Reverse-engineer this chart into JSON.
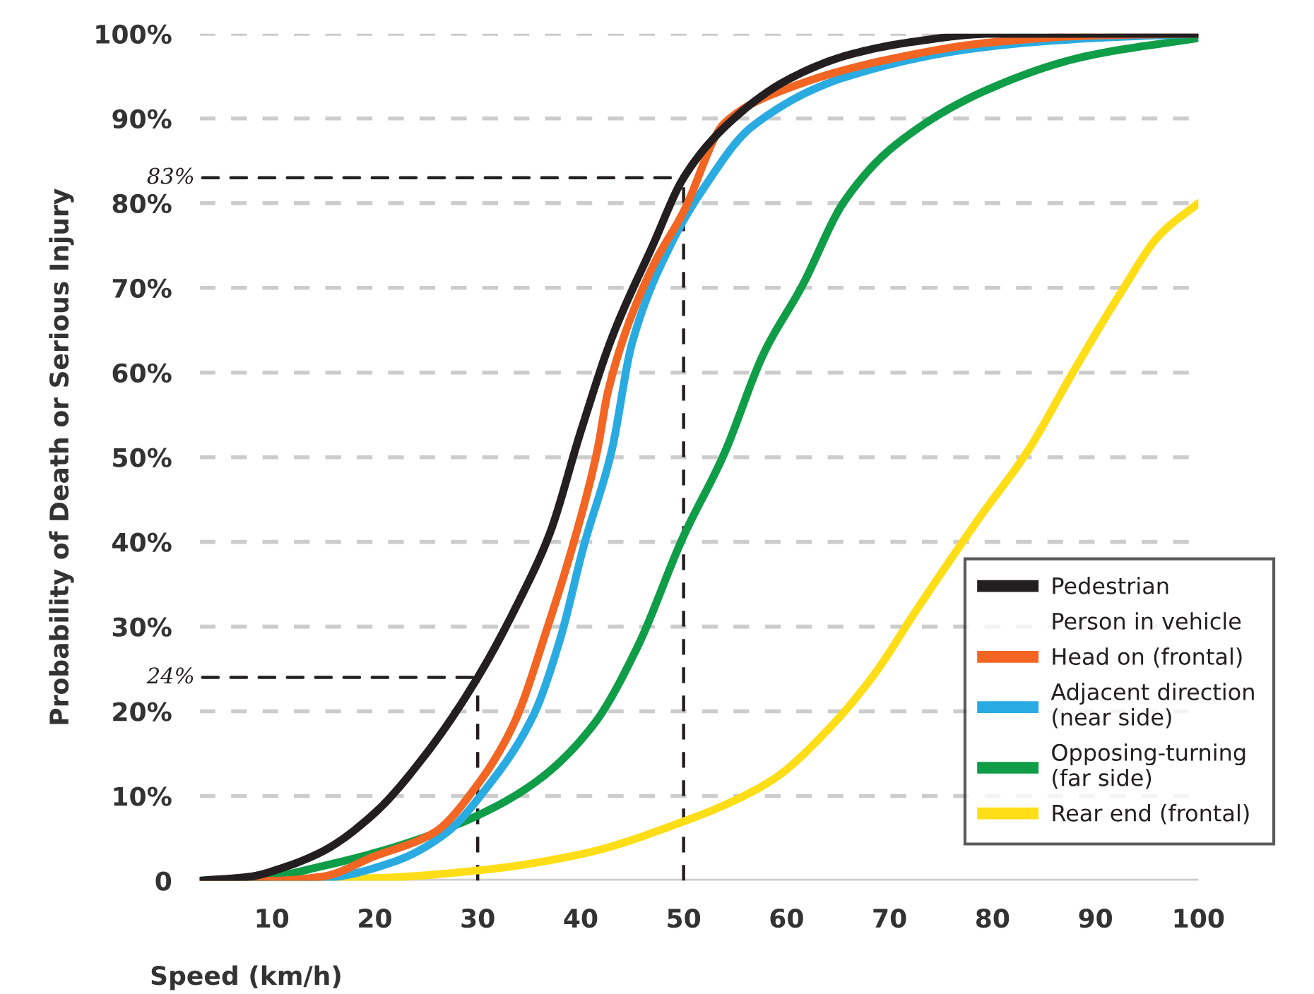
{
  "chart_data": {
    "type": "line",
    "xlabel": "Speed (km/h)",
    "ylabel": "Probability of Death or Serious Injury",
    "legend_title": "Person in vehicle",
    "series": [
      {
        "name": "Pedestrian",
        "color": "#231f20",
        "x": [
          3,
          8,
          11,
          15,
          20,
          25,
          30,
          34,
          37,
          40,
          43,
          47,
          50,
          54,
          60,
          66,
          72,
          80,
          90,
          100
        ],
        "values": [
          0,
          0.5,
          1.5,
          3.5,
          8,
          15,
          24,
          33,
          41,
          53,
          64,
          75,
          83,
          89,
          94.5,
          97.5,
          99,
          100,
          100,
          100
        ]
      },
      {
        "name": "Head on (frontal)",
        "color": "#f26522",
        "x": [
          3,
          10,
          15,
          19.8,
          25.8,
          29.9,
          33.5,
          36.8,
          39.5,
          41.6,
          42.7,
          46.8,
          50,
          54,
          60,
          70,
          80,
          90,
          100
        ],
        "values": [
          0,
          0,
          0.5,
          2.8,
          5.7,
          11.2,
          18.5,
          30,
          40.7,
          50.7,
          58,
          72,
          79,
          89.5,
          93.5,
          97,
          99,
          99.8,
          100
        ]
      },
      {
        "name": "Adjacent direction\n(near side)",
        "color": "#29abe2",
        "x": [
          3,
          10,
          15.2,
          22,
          27,
          30.7,
          35.4,
          38,
          40.3,
          43,
          45,
          49,
          51.8,
          56.6,
          66,
          79.7,
          90,
          100
        ],
        "values": [
          0,
          0,
          0.3,
          2.3,
          5.7,
          10.7,
          19.5,
          28.5,
          39.5,
          50.7,
          63.5,
          75.7,
          81.5,
          89,
          95,
          98.5,
          99.5,
          100
        ]
      },
      {
        "name": "Opposing-turning\n(far side)",
        "color": "#0f9d48",
        "x": [
          3,
          10,
          15.2,
          22,
          30,
          35.8,
          41.3,
          45.4,
          50,
          53.9,
          57.8,
          61.5,
          65.6,
          70.5,
          79.7,
          88.9,
          100
        ],
        "values": [
          0,
          0.5,
          1.8,
          4,
          7.7,
          11.8,
          18.5,
          27.3,
          40.7,
          50.3,
          62.3,
          70.2,
          80.2,
          86.8,
          93.5,
          97.3,
          99.5
        ]
      },
      {
        "name": "Rear end (frontal)",
        "color": "#ffde17",
        "x": [
          3,
          19.8,
          30,
          40.3,
          50,
          55,
          59.1,
          63.6,
          68.3,
          72.8,
          78.7,
          83.4,
          87.9,
          92.5,
          96.2,
          100
        ],
        "values": [
          0,
          0.3,
          1.2,
          3.2,
          7,
          9.5,
          12.3,
          17.3,
          24,
          32.3,
          42.8,
          50.7,
          60.2,
          69.5,
          76.2,
          80
        ]
      }
    ],
    "ref_lines": [
      {
        "axis": "x",
        "value": 30,
        "line_style": "dashed",
        "color": "#231f20"
      },
      {
        "axis": "x",
        "value": 50,
        "line_style": "dashed",
        "color": "#231f20"
      }
    ],
    "annotations": [
      {
        "text": "83%",
        "x": 50,
        "y": 83
      },
      {
        "text": "24%",
        "x": 30,
        "y": 24
      }
    ],
    "xlim": [
      3,
      100
    ],
    "xticks": [
      10,
      20,
      30,
      40,
      50,
      60,
      70,
      80,
      90,
      100
    ],
    "ylim": [
      0,
      100
    ],
    "yticks": [
      {
        "value": 0,
        "label": "0"
      },
      {
        "value": 10,
        "label": "10%"
      },
      {
        "value": 20,
        "label": "20%"
      },
      {
        "value": 30,
        "label": "30%"
      },
      {
        "value": 40,
        "label": "40%"
      },
      {
        "value": 50,
        "label": "50%"
      },
      {
        "value": 60,
        "label": "60%"
      },
      {
        "value": 70,
        "label": "70%"
      },
      {
        "value": 80,
        "label": "80%"
      },
      {
        "value": 90,
        "label": "90%"
      },
      {
        "value": 100,
        "label": "100%"
      }
    ],
    "grid": "y",
    "legend": "bottom right",
    "line_style": "solid"
  }
}
